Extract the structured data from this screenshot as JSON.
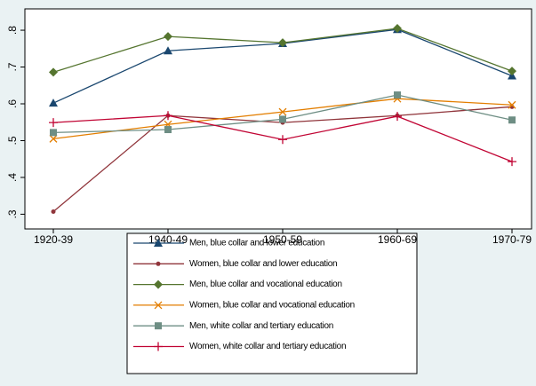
{
  "chart_data": {
    "type": "line",
    "categories": [
      "1920-39",
      "1940-49",
      "1950-59",
      "1960-69",
      "1970-79"
    ],
    "ylim": [
      0.26,
      0.858
    ],
    "yticks": [
      {
        "value": 0.3,
        "label": ".3"
      },
      {
        "value": 0.4,
        "label": ".4"
      },
      {
        "value": 0.5,
        "label": ".5"
      },
      {
        "value": 0.6,
        "label": ".6"
      },
      {
        "value": 0.7,
        "label": ".7"
      },
      {
        "value": 0.8,
        "label": ".8"
      }
    ],
    "series": [
      {
        "name": "Men, blue collar and lower education",
        "color": "#1a476f",
        "marker": "triangle",
        "values": [
          0.602,
          0.744,
          0.764,
          0.802,
          0.676
        ]
      },
      {
        "name": "Women, blue collar and lower education",
        "color": "#90353b",
        "marker": "circle",
        "values": [
          0.307,
          0.568,
          0.549,
          0.568,
          0.592
        ]
      },
      {
        "name": "Men, blue collar and vocational education",
        "color": "#55752f",
        "marker": "diamond",
        "values": [
          0.686,
          0.783,
          0.766,
          0.805,
          0.689
        ]
      },
      {
        "name": "Women, blue collar and vocational education",
        "color": "#e37e00",
        "marker": "x",
        "values": [
          0.505,
          0.544,
          0.578,
          0.614,
          0.597
        ]
      },
      {
        "name": "Men, white collar and tertiary education",
        "color": "#6e8e84",
        "marker": "square",
        "values": [
          0.522,
          0.53,
          0.558,
          0.624,
          0.556
        ]
      },
      {
        "name": "Women, white collar and tertiary education",
        "color": "#c10534",
        "marker": "plus",
        "values": [
          0.549,
          0.568,
          0.503,
          0.566,
          0.443
        ]
      }
    ]
  }
}
